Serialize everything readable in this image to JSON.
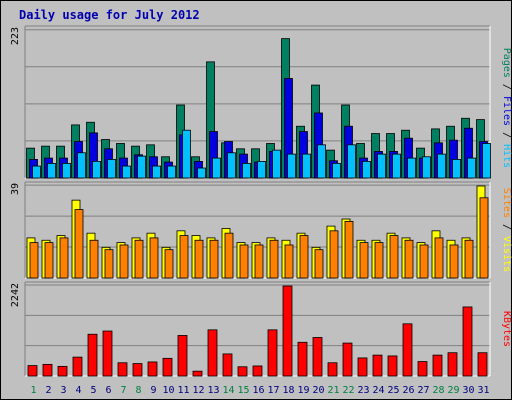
{
  "title": "Daily usage for July 2012",
  "colors": {
    "hits": "#00c0ff",
    "files": "#0000e0",
    "pages": "#008060",
    "visits": "#ffff00",
    "sites": "#ff8000",
    "kbytes": "#ff0000",
    "weekend_day": "#008040",
    "weekday": "#000080"
  },
  "chart_data": [
    {
      "type": "bar",
      "name_label": "Pages / Files / Hits",
      "y_max_label": "223",
      "ylim": [
        0,
        223
      ],
      "legend": [
        "Pages",
        "Files",
        "Hits"
      ],
      "categories": [
        "1",
        "2",
        "3",
        "4",
        "5",
        "6",
        "7",
        "8",
        "9",
        "10",
        "11",
        "12",
        "13",
        "14",
        "15",
        "16",
        "17",
        "18",
        "19",
        "20",
        "21",
        "22",
        "23",
        "24",
        "25",
        "26",
        "27",
        "28",
        "29",
        "30",
        "31"
      ],
      "weekend": [
        "1",
        "7",
        "8",
        "14",
        "15",
        "21",
        "22",
        "28",
        "29"
      ],
      "series": [
        {
          "name": "Pages",
          "values": [
            45,
            48,
            48,
            80,
            84,
            58,
            52,
            48,
            50,
            32,
            110,
            32,
            175,
            53,
            44,
            44,
            52,
            210,
            78,
            140,
            42,
            110,
            52,
            67,
            67,
            72,
            45,
            74,
            78,
            90,
            88
          ]
        },
        {
          "name": "Files",
          "values": [
            28,
            30,
            30,
            55,
            68,
            44,
            30,
            35,
            32,
            24,
            65,
            25,
            70,
            55,
            36,
            24,
            40,
            150,
            70,
            98,
            26,
            78,
            30,
            40,
            40,
            60,
            30,
            53,
            57,
            75,
            55
          ]
        },
        {
          "name": "Hits",
          "values": [
            18,
            22,
            22,
            38,
            25,
            28,
            18,
            33,
            18,
            18,
            72,
            15,
            30,
            38,
            22,
            25,
            42,
            36,
            36,
            50,
            22,
            50,
            25,
            36,
            36,
            30,
            32,
            36,
            28,
            30,
            52
          ]
        }
      ]
    },
    {
      "type": "bar",
      "name_label": "Sites / Visits",
      "y_max_label": "39",
      "ylim": [
        0,
        39
      ],
      "legend": [
        "Sites",
        "Visits"
      ],
      "categories": [
        "1",
        "2",
        "3",
        "4",
        "5",
        "6",
        "7",
        "8",
        "9",
        "10",
        "11",
        "12",
        "13",
        "14",
        "15",
        "16",
        "17",
        "18",
        "19",
        "20",
        "21",
        "22",
        "23",
        "24",
        "25",
        "26",
        "27",
        "28",
        "29",
        "30",
        "31"
      ],
      "series": [
        {
          "name": "Visits",
          "values": [
            17,
            16,
            18,
            33,
            19,
            13,
            15,
            17,
            19,
            13,
            20,
            18,
            17,
            21,
            15,
            15,
            17,
            16,
            19,
            13,
            22,
            25,
            16,
            16,
            19,
            17,
            15,
            20,
            16,
            17,
            39
          ]
        },
        {
          "name": "Sites",
          "values": [
            15,
            15,
            17,
            29,
            16,
            12,
            14,
            16,
            17,
            12,
            18,
            16,
            16,
            19,
            14,
            14,
            16,
            14,
            18,
            12,
            20,
            24,
            15,
            15,
            18,
            16,
            14,
            17,
            14,
            16,
            34
          ]
        }
      ]
    },
    {
      "type": "bar",
      "name_label": "KBytes",
      "y_max_label": "2242",
      "ylim": [
        0,
        2242
      ],
      "legend": [
        "KBytes"
      ],
      "categories": [
        "1",
        "2",
        "3",
        "4",
        "5",
        "6",
        "7",
        "8",
        "9",
        "10",
        "11",
        "12",
        "13",
        "14",
        "15",
        "16",
        "17",
        "18",
        "19",
        "20",
        "21",
        "22",
        "23",
        "24",
        "25",
        "26",
        "27",
        "28",
        "29",
        "30",
        "31"
      ],
      "series": [
        {
          "name": "KBytes",
          "values": [
            260,
            290,
            240,
            470,
            1040,
            1120,
            330,
            310,
            350,
            440,
            1010,
            120,
            1150,
            550,
            230,
            250,
            1150,
            2242,
            840,
            960,
            330,
            820,
            450,
            520,
            500,
            1300,
            360,
            520,
            580,
            1720,
            580
          ]
        }
      ]
    }
  ]
}
